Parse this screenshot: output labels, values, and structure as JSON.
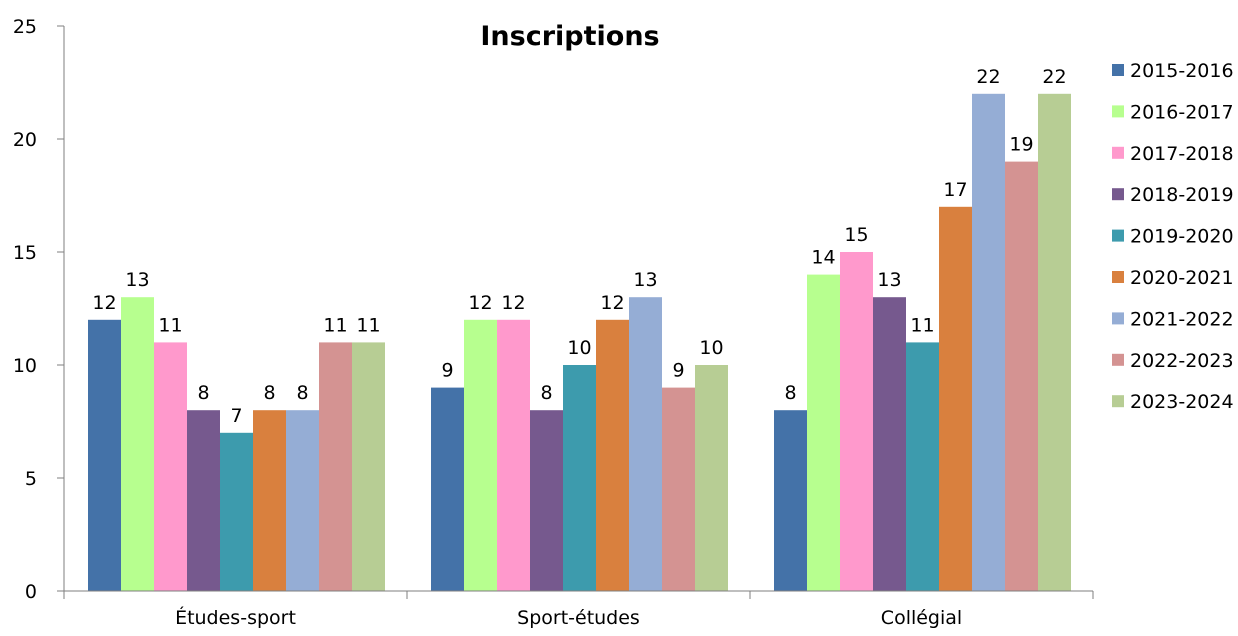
{
  "chart_data": {
    "type": "bar",
    "title": "Inscriptions",
    "xlabel": "",
    "ylabel": "",
    "ylim": [
      0,
      25
    ],
    "yticks": [
      0,
      5,
      10,
      15,
      20,
      25
    ],
    "grid": false,
    "legend_position": "right",
    "data_labels": true,
    "categories": [
      "Études-sport",
      "Sport-études",
      "Collégial"
    ],
    "series": [
      {
        "name": "2015-2016",
        "color": "#4472a8",
        "values": [
          12,
          9,
          8
        ]
      },
      {
        "name": "2016-2017",
        "color": "#b7ff8f",
        "values": [
          13,
          12,
          14
        ]
      },
      {
        "name": "2017-2018",
        "color": "#ff99cc",
        "values": [
          11,
          12,
          15
        ]
      },
      {
        "name": "2018-2019",
        "color": "#76598e",
        "values": [
          8,
          8,
          13
        ]
      },
      {
        "name": "2019-2020",
        "color": "#3d9bad",
        "values": [
          7,
          10,
          11
        ]
      },
      {
        "name": "2020-2021",
        "color": "#d9803e",
        "values": [
          8,
          12,
          17
        ]
      },
      {
        "name": "2021-2022",
        "color": "#95add5",
        "values": [
          8,
          13,
          22
        ]
      },
      {
        "name": "2022-2023",
        "color": "#d49392",
        "values": [
          11,
          9,
          19
        ]
      },
      {
        "name": "2023-2024",
        "color": "#b7cd94",
        "values": [
          11,
          10,
          22
        ]
      }
    ]
  }
}
